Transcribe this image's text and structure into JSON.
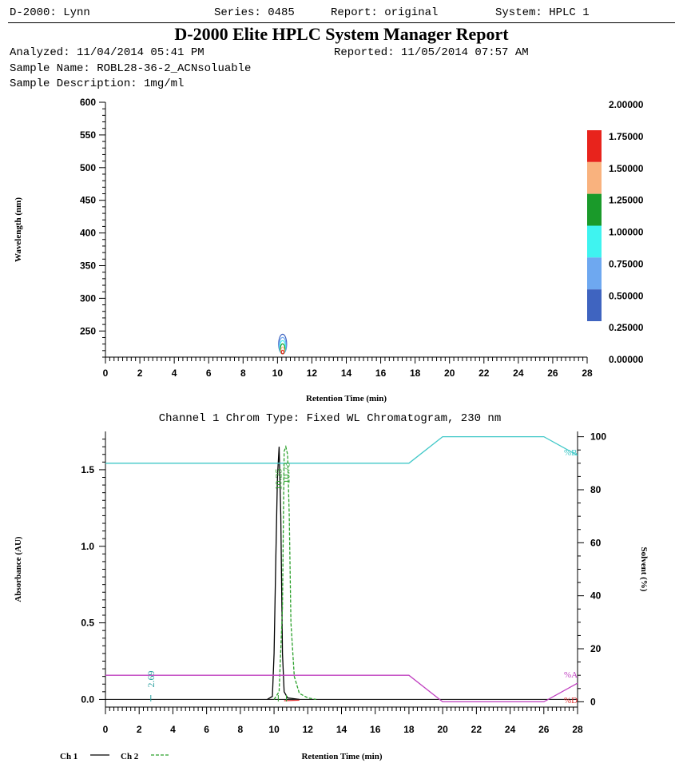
{
  "header": {
    "instrument": "D-2000: Lynn",
    "series": "Series: 0485",
    "report": "Report: original",
    "system": "System: HPLC 1",
    "title": "D-2000 Elite HPLC System Manager Report",
    "analyzed": "Analyzed: 11/04/2014 05:41 PM",
    "reported": "Reported: 11/05/2014 07:57 AM",
    "sample_name": "Sample Name: ROBL28-36-2_ACNsoluable",
    "sample_description": "Sample Description: 1mg/ml"
  },
  "chart_data": [
    {
      "type": "heatmap",
      "xlabel": "Retention Time (min)",
      "ylabel": "Wavelength (nm)",
      "xlim": [
        0,
        28
      ],
      "ylim": [
        210,
        600
      ],
      "xticks": [
        0,
        2,
        4,
        6,
        8,
        10,
        12,
        14,
        16,
        18,
        20,
        22,
        24,
        26,
        28
      ],
      "yticks": [
        250,
        300,
        350,
        400,
        450,
        500,
        550,
        600
      ],
      "colorbar": {
        "labels": [
          "2.00000",
          "1.75000",
          "1.50000",
          "1.25000",
          "1.00000",
          "0.75000",
          "0.50000",
          "0.25000",
          "0.00000"
        ],
        "colors": [
          "#e8231c",
          "#f9b27e",
          "#1a9a2a",
          "#3ff3f0",
          "#6ea8f0",
          "#3f64c0"
        ]
      },
      "contour": {
        "x": 10.3,
        "wavelength_min": 215,
        "wavelength_max": 245
      }
    },
    {
      "type": "line",
      "title": "Channel 1 Chrom Type: Fixed WL Chromatogram, 230 nm",
      "xlabel": "Retention Time (min)",
      "ylabel": "Absorbance (AU)",
      "y2label": "Solvent (%)",
      "xlim": [
        0,
        28
      ],
      "ylim": [
        -0.05,
        1.75
      ],
      "y2lim": [
        -2,
        102
      ],
      "xticks": [
        0,
        2,
        4,
        6,
        8,
        10,
        12,
        14,
        16,
        18,
        20,
        22,
        24,
        26,
        28
      ],
      "yticks": [
        0.0,
        0.5,
        1.0,
        1.5
      ],
      "yticklabels": [
        "0.0",
        "0.5",
        "1.0",
        "1.5"
      ],
      "y2ticks": [
        0,
        20,
        40,
        60,
        80,
        100
      ],
      "series": [
        {
          "name": "Ch 1",
          "color": "#000000",
          "dash": "solid",
          "x": [
            9.6,
            9.9,
            10.0,
            10.1,
            10.2,
            10.3,
            10.4,
            10.5,
            10.6,
            10.8,
            11.5
          ],
          "y": [
            0.0,
            0.02,
            0.3,
            0.9,
            1.45,
            1.65,
            1.2,
            0.3,
            0.05,
            0.01,
            0.0
          ]
        },
        {
          "name": "Ch 2",
          "color": "#2aa02a",
          "dash": "dashed",
          "x": [
            10.0,
            10.3,
            10.5,
            10.6,
            10.7,
            10.8,
            10.9,
            11.0,
            11.2,
            11.5,
            12.0,
            12.5
          ],
          "y": [
            0.0,
            0.05,
            0.6,
            1.62,
            1.65,
            1.6,
            1.2,
            0.5,
            0.15,
            0.04,
            0.01,
            0.0
          ]
        },
        {
          "name": "%B",
          "color": "#40c8c8",
          "dash": "solid",
          "axis": "y2",
          "x": [
            0,
            18,
            20,
            26,
            28
          ],
          "y": [
            90,
            90,
            100,
            100,
            93
          ]
        },
        {
          "name": "%A",
          "color": "#c040c0",
          "dash": "solid",
          "axis": "y2",
          "x": [
            0,
            18,
            20,
            26,
            28
          ],
          "y": [
            10,
            10,
            0,
            0,
            7
          ]
        },
        {
          "name": "%D",
          "color": "#e03030",
          "dash": "solid",
          "axis": "y2",
          "x": [
            10.6,
            11.5
          ],
          "y": [
            0.4,
            0.6
          ]
        }
      ],
      "peak_labels": [
        {
          "text": "2.69",
          "x": 2.69,
          "color": "#2aa0a0"
        },
        {
          "text": "10.25",
          "x": 10.25,
          "color": "#2aa02a"
        },
        {
          "text": "10.73",
          "x": 10.73,
          "color": "#2aa02a"
        }
      ],
      "solvent_labels": [
        {
          "text": "%B",
          "color": "#40c8c8"
        },
        {
          "text": "%A",
          "color": "#c040c0"
        },
        {
          "text": "%D",
          "color": "#e03030"
        }
      ],
      "legend": [
        {
          "text": "Ch 1",
          "dash": "solid",
          "color": "#000000"
        },
        {
          "text": "Ch 2",
          "dash": "dashed",
          "color": "#2aa02a"
        }
      ]
    }
  ]
}
